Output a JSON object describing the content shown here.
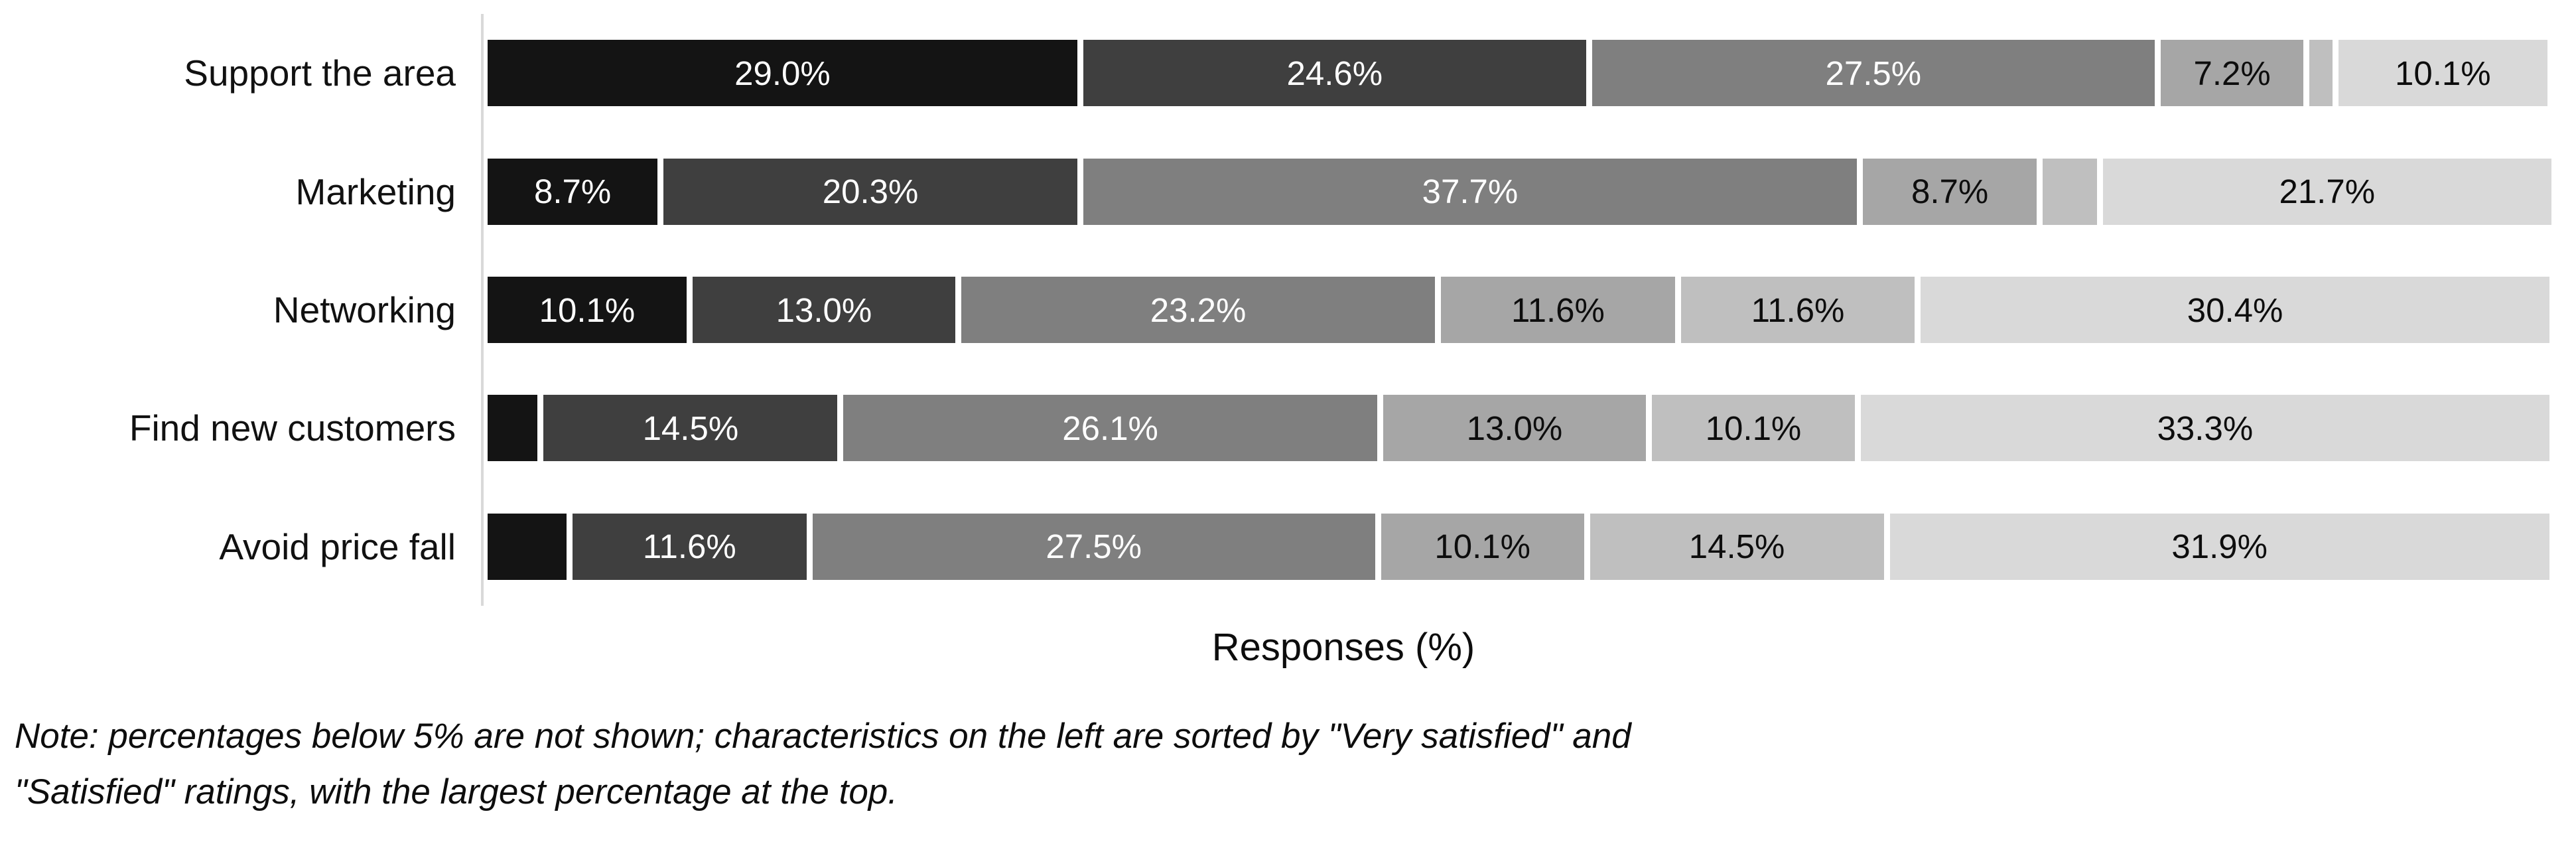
{
  "chart_data": {
    "type": "bar",
    "orientation": "horizontal",
    "stacked": true,
    "title": "",
    "xlabel": "Responses (%)",
    "ylabel": "",
    "xlim": [
      0,
      100
    ],
    "grid": false,
    "legend": "none",
    "axis_line_color": "#d9d9d9",
    "series_colors": [
      "#141414",
      "#3f3f3f",
      "#7f7f7f",
      "#a6a6a6",
      "#bfbfbf",
      "#d9d9d9"
    ],
    "series_label_colors": [
      "#ffffff",
      "#ffffff",
      "#ffffff",
      "#0d0d0d",
      "#0d0d0d",
      "#0d0d0d"
    ],
    "categories": [
      "Support the area",
      "Marketing",
      "Networking",
      "Find new customers",
      "Avoid price fall"
    ],
    "rows": [
      {
        "category": "Support the area",
        "segments": [
          {
            "value": 29.0,
            "label": "29.0%"
          },
          {
            "value": 24.6,
            "label": "24.6%"
          },
          {
            "value": 27.5,
            "label": "27.5%"
          },
          {
            "value": 7.2,
            "label": "7.2%"
          },
          {
            "value": 1.4,
            "label": ""
          },
          {
            "value": 10.1,
            "label": "10.1%"
          }
        ]
      },
      {
        "category": "Marketing",
        "segments": [
          {
            "value": 8.7,
            "label": "8.7%"
          },
          {
            "value": 20.3,
            "label": "20.3%"
          },
          {
            "value": 37.7,
            "label": "37.7%"
          },
          {
            "value": 8.7,
            "label": "8.7%"
          },
          {
            "value": 2.9,
            "label": ""
          },
          {
            "value": 21.7,
            "label": "21.7%"
          }
        ]
      },
      {
        "category": "Networking",
        "segments": [
          {
            "value": 10.1,
            "label": "10.1%"
          },
          {
            "value": 13.0,
            "label": "13.0%"
          },
          {
            "value": 23.2,
            "label": "23.2%"
          },
          {
            "value": 11.6,
            "label": "11.6%"
          },
          {
            "value": 11.6,
            "label": "11.6%"
          },
          {
            "value": 30.4,
            "label": "30.4%"
          }
        ]
      },
      {
        "category": "Find new customers",
        "segments": [
          {
            "value": 2.9,
            "label": ""
          },
          {
            "value": 14.5,
            "label": "14.5%"
          },
          {
            "value": 26.1,
            "label": "26.1%"
          },
          {
            "value": 13.0,
            "label": "13.0%"
          },
          {
            "value": 10.1,
            "label": "10.1%"
          },
          {
            "value": 33.3,
            "label": "33.3%"
          }
        ]
      },
      {
        "category": "Avoid price fall",
        "segments": [
          {
            "value": 4.3,
            "label": ""
          },
          {
            "value": 11.6,
            "label": "11.6%"
          },
          {
            "value": 27.5,
            "label": "27.5%"
          },
          {
            "value": 10.1,
            "label": "10.1%"
          },
          {
            "value": 14.5,
            "label": "14.5%"
          },
          {
            "value": 31.9,
            "label": "31.9%"
          }
        ]
      }
    ],
    "note_line1": "Note: percentages below 5% are not shown; characteristics on the left are sorted by \"Very satisfied\" and",
    "note_line2": "\"Satisfied\" ratings, with the largest percentage at the top."
  },
  "colors": {
    "background": "#ffffff",
    "text": "#0d0d0d"
  }
}
